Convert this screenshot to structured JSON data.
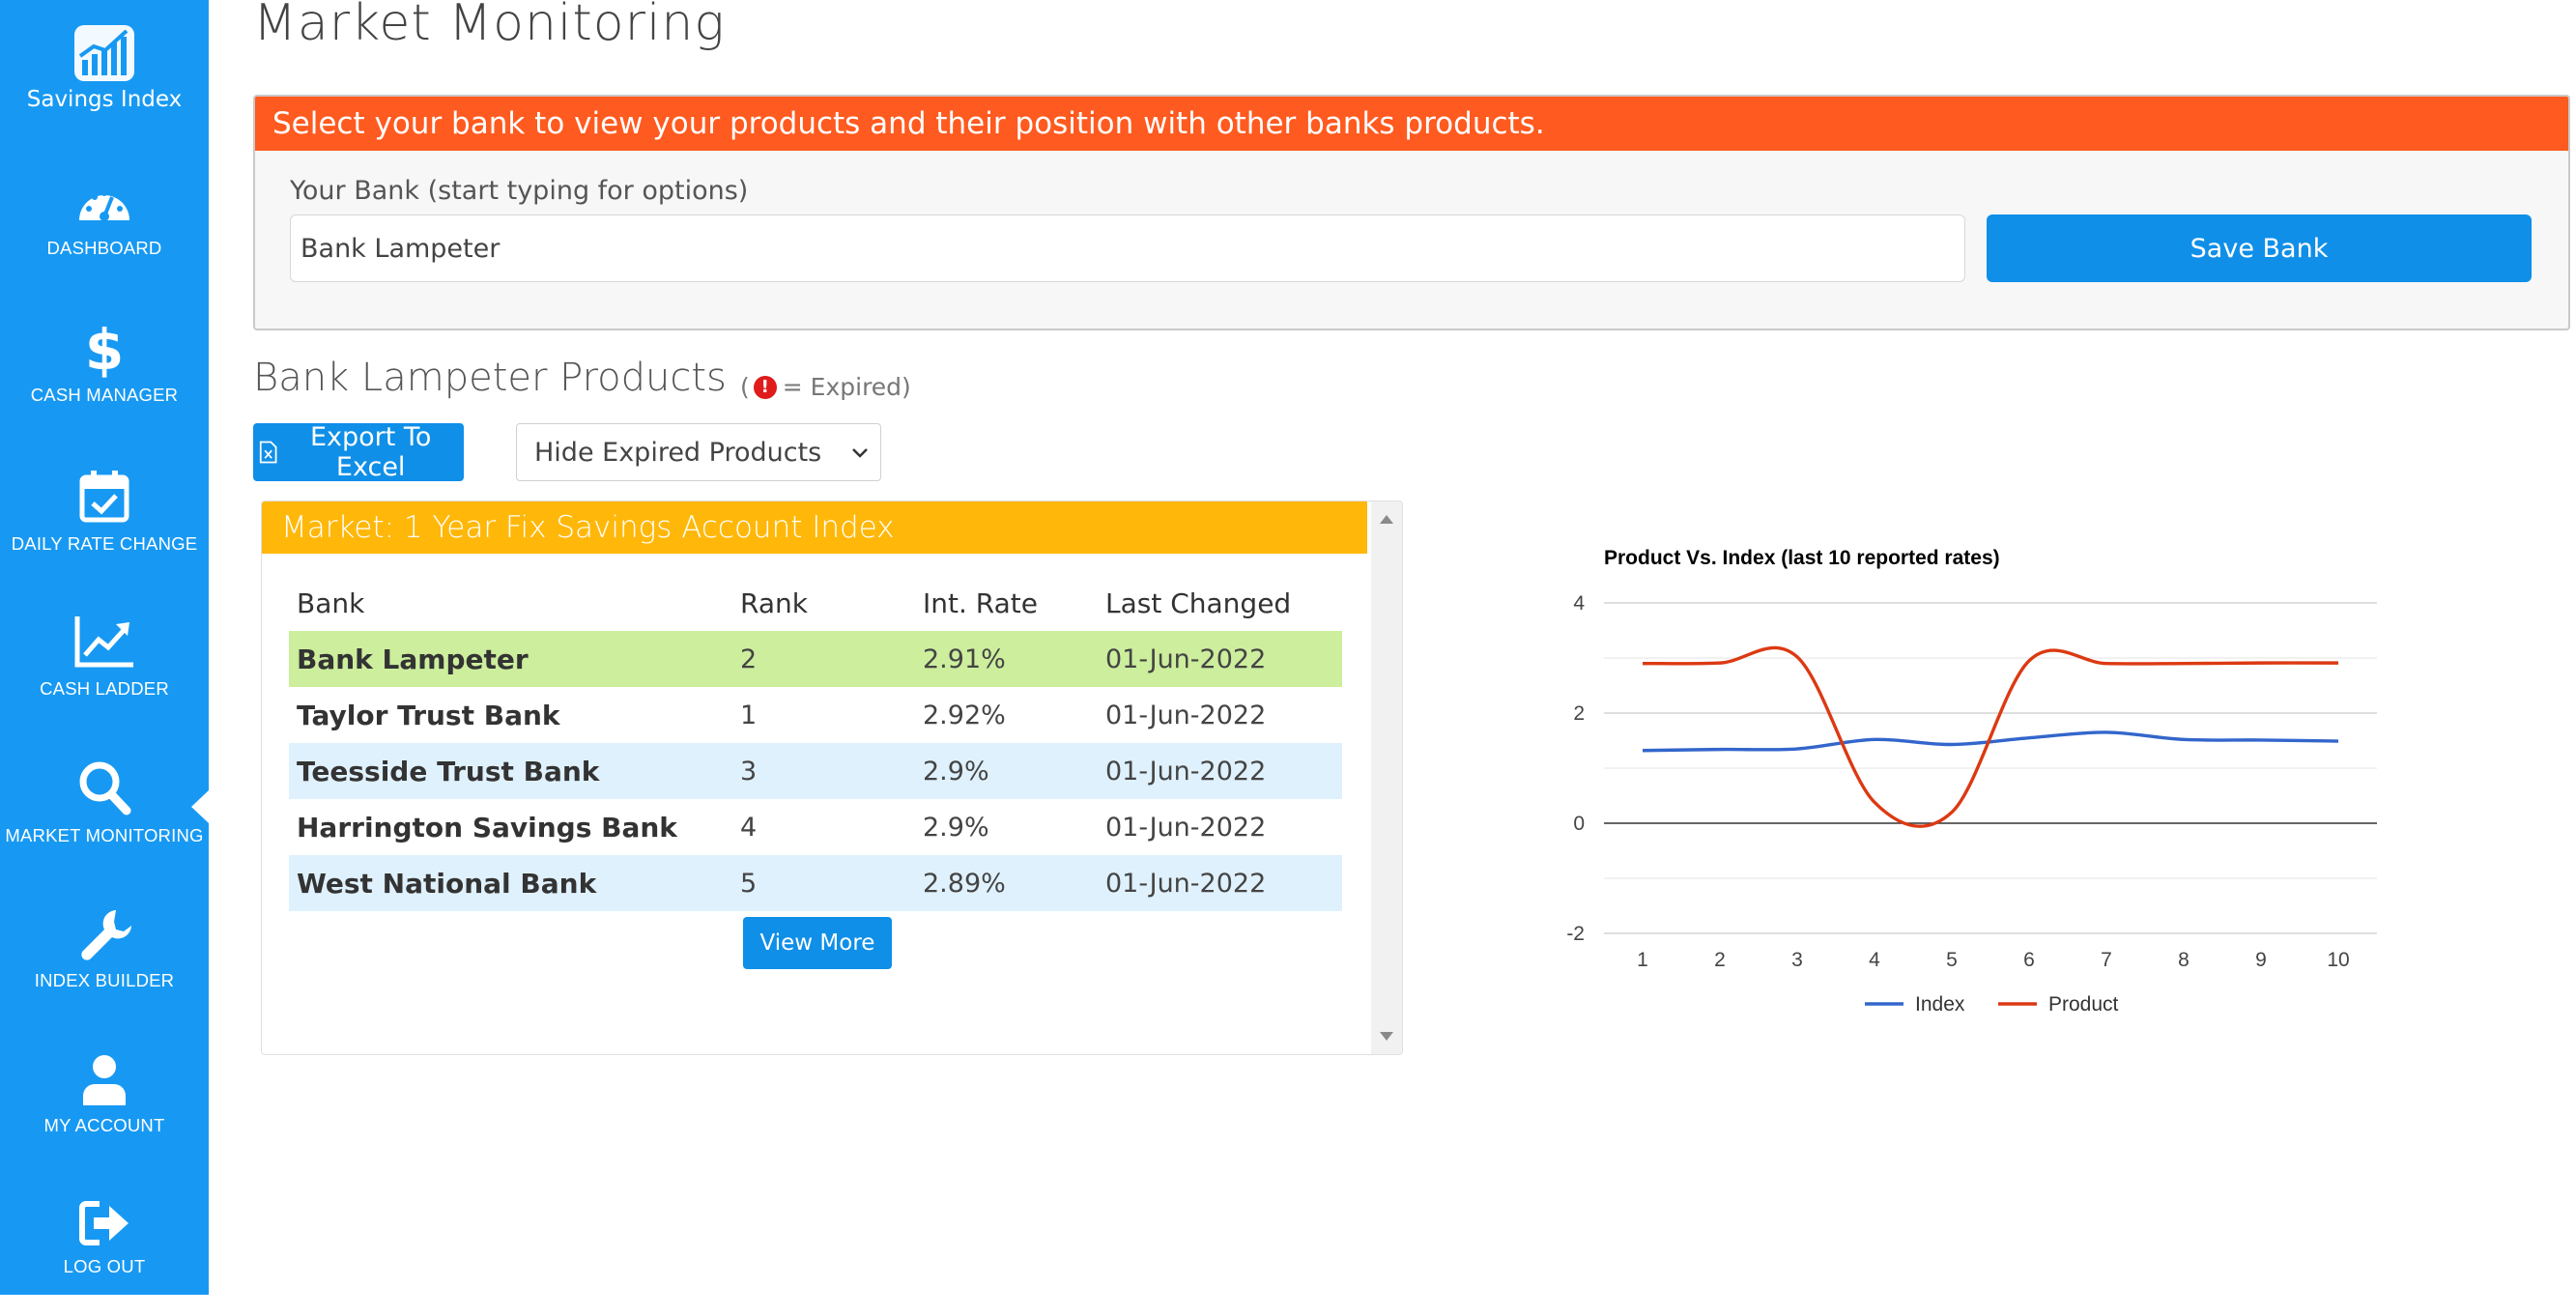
{
  "app": {
    "name": "Savings Index"
  },
  "sidebar": {
    "items": [
      {
        "label": "DASHBOARD",
        "icon": "dashboard-gauge-icon"
      },
      {
        "label": "CASH MANAGER",
        "icon": "dollar-icon"
      },
      {
        "label": "DAILY RATE CHANGE",
        "icon": "calendar-check-icon"
      },
      {
        "label": "CASH LADDER",
        "icon": "trend-up-chart-icon"
      },
      {
        "label": "MARKET MONITORING",
        "icon": "search-icon",
        "active": true
      },
      {
        "label": "INDEX BUILDER",
        "icon": "wrench-icon"
      },
      {
        "label": "MY ACCOUNT",
        "icon": "user-icon"
      },
      {
        "label": "LOG OUT",
        "icon": "logout-icon"
      }
    ]
  },
  "page": {
    "title": "Market Monitoring"
  },
  "bank_select": {
    "header": "Select your bank to view your products and their position with other banks products.",
    "label": "Your Bank (start typing for options)",
    "value": "Bank Lampeter",
    "save_label": "Save Bank"
  },
  "products": {
    "title": "Bank Lampeter Products",
    "expired_open": "(",
    "expired_note": "= Expired)",
    "export_label": "Export To Excel",
    "filter_value": "Hide Expired Products"
  },
  "market": {
    "header": "Market: 1 Year Fix Savings Account Index",
    "columns": [
      "Bank",
      "Rank",
      "Int. Rate",
      "Last Changed"
    ],
    "rows": [
      {
        "bank": "Bank Lampeter",
        "rank": "2",
        "rate": "2.91%",
        "changed": "01-Jun-2022"
      },
      {
        "bank": "Taylor Trust Bank",
        "rank": "1",
        "rate": "2.92%",
        "changed": "01-Jun-2022"
      },
      {
        "bank": "Teesside Trust Bank",
        "rank": "3",
        "rate": "2.9%",
        "changed": "01-Jun-2022"
      },
      {
        "bank": "Harrington Savings Bank",
        "rank": "4",
        "rate": "2.9%",
        "changed": "01-Jun-2022"
      },
      {
        "bank": "West National Bank",
        "rank": "5",
        "rate": "2.89%",
        "changed": "01-Jun-2022"
      }
    ],
    "view_more_label": "View More"
  },
  "colors": {
    "sidebar": "#1799f3",
    "bank_header": "#ff5a1f",
    "market_header": "#ffb80a",
    "highlight_row": "#ccee9d",
    "alt_row": "#dff1fd",
    "button": "#0f8fe8",
    "index_line": "#3366cc",
    "product_line": "#dc3912"
  },
  "chart_data": {
    "type": "line",
    "title": "Product Vs. Index (last 10 reported rates)",
    "x": [
      1,
      2,
      3,
      4,
      5,
      6,
      7,
      8,
      9,
      10
    ],
    "x_ticks": [
      "1",
      "2",
      "3",
      "4",
      "5",
      "6",
      "7",
      "8",
      "9",
      "10"
    ],
    "y_ticks": [
      "4",
      "2",
      "0",
      "-2"
    ],
    "ylim": [
      -2,
      4
    ],
    "grid": true,
    "legend": "bottom",
    "series": [
      {
        "name": "Index",
        "values": [
          1.32,
          1.34,
          1.35,
          1.52,
          1.43,
          1.55,
          1.65,
          1.52,
          1.51,
          1.49
        ]
      },
      {
        "name": "Product",
        "values": [
          2.9,
          2.91,
          3.02,
          0.38,
          0.2,
          2.95,
          2.9,
          2.9,
          2.91,
          2.91
        ]
      }
    ]
  }
}
